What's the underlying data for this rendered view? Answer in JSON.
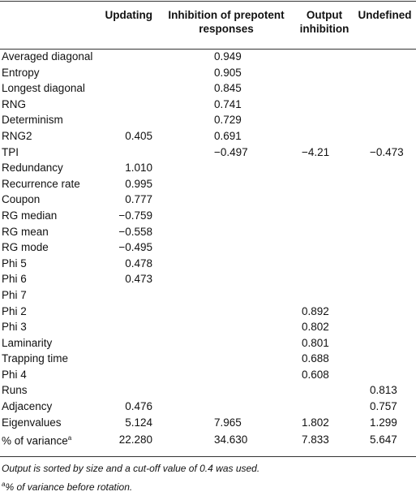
{
  "headers": [
    "",
    "Updating",
    "Inhibition of prepotent responses",
    "Output inhibition",
    "Undefined"
  ],
  "rows": [
    {
      "label": "Averaged diagonal",
      "c1": "",
      "c2": "0.949",
      "c3": "",
      "c4": ""
    },
    {
      "label": "Entropy",
      "c1": "",
      "c2": "0.905",
      "c3": "",
      "c4": ""
    },
    {
      "label": "Longest diagonal",
      "c1": "",
      "c2": "0.845",
      "c3": "",
      "c4": ""
    },
    {
      "label": "RNG",
      "c1": "",
      "c2": "0.741",
      "c3": "",
      "c4": ""
    },
    {
      "label": "Determinism",
      "c1": "",
      "c2": "0.729",
      "c3": "",
      "c4": ""
    },
    {
      "label": "RNG2",
      "c1": "0.405",
      "c2": "0.691",
      "c3": "",
      "c4": ""
    },
    {
      "label": "TPI",
      "c1": "",
      "c2": "−0.497",
      "c3": "−4.21",
      "c4": "−0.473"
    },
    {
      "label": "Redundancy",
      "c1": "1.010",
      "c2": "",
      "c3": "",
      "c4": ""
    },
    {
      "label": "Recurrence rate",
      "c1": "0.995",
      "c2": "",
      "c3": "",
      "c4": ""
    },
    {
      "label": "Coupon",
      "c1": "0.777",
      "c2": "",
      "c3": "",
      "c4": ""
    },
    {
      "label": "RG median",
      "c1": "−0.759",
      "c2": "",
      "c3": "",
      "c4": ""
    },
    {
      "label": "RG mean",
      "c1": "−0.558",
      "c2": "",
      "c3": "",
      "c4": ""
    },
    {
      "label": "RG mode",
      "c1": "−0.495",
      "c2": "",
      "c3": "",
      "c4": ""
    },
    {
      "label": "Phi 5",
      "c1": "0.478",
      "c2": "",
      "c3": "",
      "c4": ""
    },
    {
      "label": "Phi 6",
      "c1": "0.473",
      "c2": "",
      "c3": "",
      "c4": ""
    },
    {
      "label": "Phi 7",
      "c1": "",
      "c2": "",
      "c3": "",
      "c4": ""
    },
    {
      "label": "Phi 2",
      "c1": "",
      "c2": "",
      "c3": "0.892",
      "c4": ""
    },
    {
      "label": "Phi 3",
      "c1": "",
      "c2": "",
      "c3": "0.802",
      "c4": ""
    },
    {
      "label": "Laminarity",
      "c1": "",
      "c2": "",
      "c3": "0.801",
      "c4": ""
    },
    {
      "label": "Trapping time",
      "c1": "",
      "c2": "",
      "c3": "0.688",
      "c4": ""
    },
    {
      "label": "Phi 4",
      "c1": "",
      "c2": "",
      "c3": "0.608",
      "c4": ""
    },
    {
      "label": "Runs",
      "c1": "",
      "c2": "",
      "c3": "",
      "c4": "0.813"
    },
    {
      "label": "Adjacency",
      "c1": "0.476",
      "c2": "",
      "c3": "",
      "c4": "0.757"
    },
    {
      "label": "Eigenvalues",
      "c1": "5.124",
      "c2": "7.965",
      "c3": "1.802",
      "c4": "1.299"
    },
    {
      "label": "% of variance",
      "label_sup": "a",
      "c1": "22.280",
      "c2": "34.630",
      "c3": "7.833",
      "c4": "5.647"
    }
  ],
  "footnotes": {
    "main": "Output is sorted by size and a cut-off value of 0.4 was used.",
    "a_mark": "a",
    "a_text": "% of variance before rotation."
  }
}
